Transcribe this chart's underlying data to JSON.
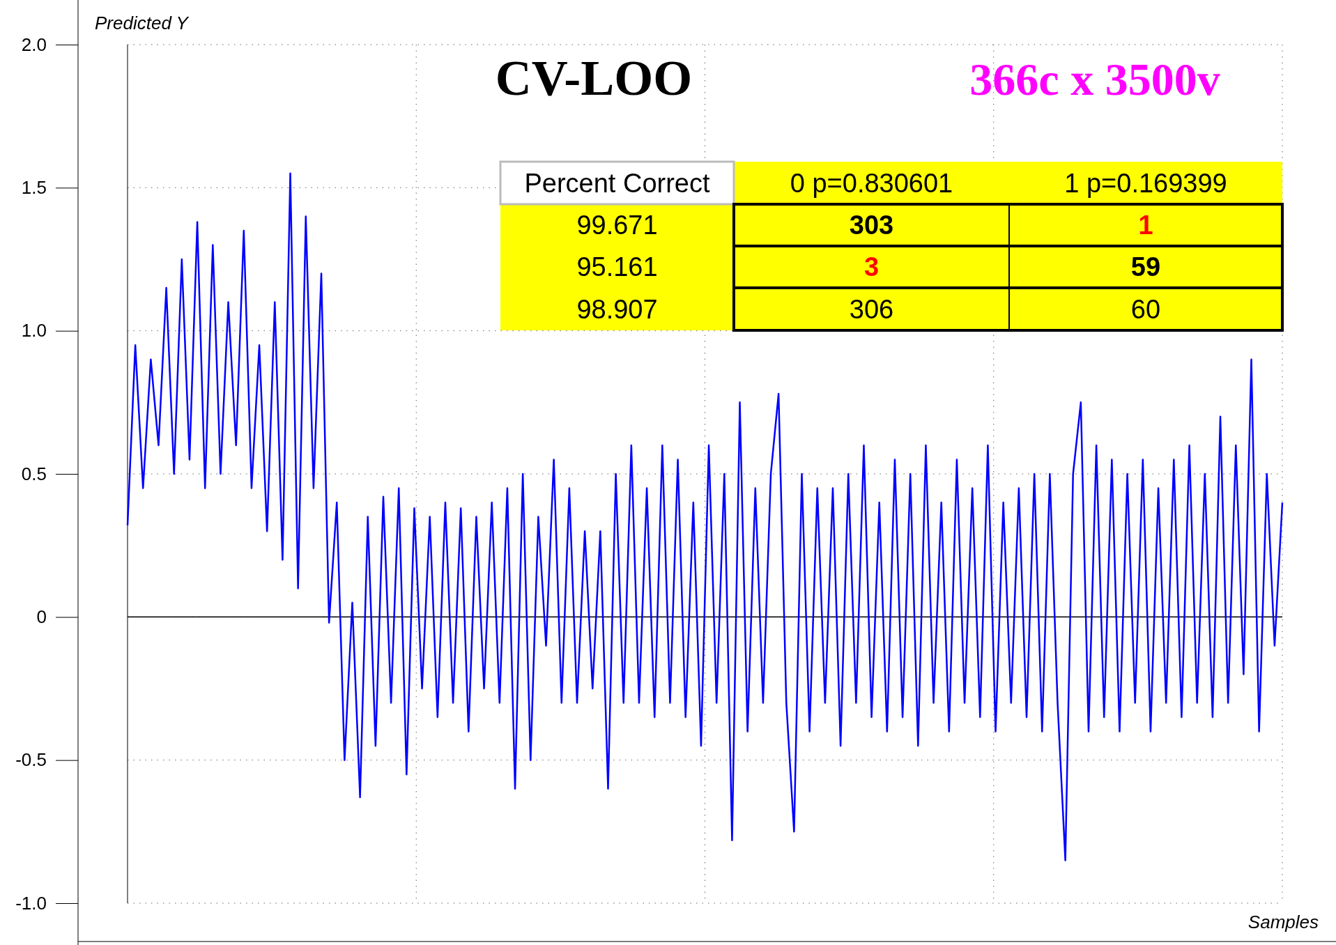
{
  "chart_data": {
    "type": "line",
    "title": "CV-LOO",
    "subtitle": "366c x 3500v",
    "ylabel": "Predicted Y",
    "xlabel": "Samples",
    "categories": [
      null,
      null,
      null,
      null,
      null,
      null,
      null,
      null,
      null,
      null,
      null,
      null,
      null,
      null,
      null,
      null,
      null,
      null,
      null,
      null,
      null,
      null,
      null,
      null,
      null,
      null,
      null,
      null,
      null,
      null,
      null,
      null,
      null,
      null,
      null,
      null,
      null,
      null,
      null,
      null,
      null,
      null,
      null,
      null,
      null,
      null,
      null,
      null,
      null,
      null,
      null,
      null,
      null,
      null,
      null,
      null,
      null,
      null,
      null,
      null,
      null,
      null,
      null,
      null,
      null,
      null,
      null,
      null,
      null,
      null,
      null,
      null,
      null,
      null,
      null,
      null,
      null,
      null,
      null,
      null,
      null,
      null,
      null,
      null,
      null,
      null,
      null,
      null,
      null,
      null,
      null,
      null,
      null,
      null,
      null,
      null,
      null,
      null,
      null,
      null,
      null,
      null,
      null,
      null,
      null,
      null,
      null,
      null,
      null,
      null,
      null,
      null,
      null,
      null,
      null,
      null,
      null,
      null,
      null,
      null,
      null,
      null,
      null,
      null,
      null,
      null,
      null,
      null,
      null,
      null,
      null,
      null,
      null,
      null,
      null,
      null,
      null,
      null,
      null,
      null,
      null,
      null,
      null,
      null,
      null,
      null,
      null,
      null,
      null,
      null
    ],
    "series": [
      {
        "color": "#0000ff",
        "values": [
          0.32,
          0.95,
          0.45,
          0.9,
          0.6,
          1.15,
          0.5,
          1.25,
          0.55,
          1.38,
          0.45,
          1.3,
          0.5,
          1.1,
          0.6,
          1.35,
          0.45,
          0.95,
          0.3,
          1.1,
          0.2,
          1.55,
          0.1,
          1.4,
          0.45,
          1.2,
          -0.02,
          0.4,
          -0.5,
          0.05,
          -0.63,
          0.35,
          -0.45,
          0.42,
          -0.3,
          0.45,
          -0.55,
          0.38,
          -0.25,
          0.35,
          -0.35,
          0.4,
          -0.3,
          0.38,
          -0.4,
          0.35,
          -0.25,
          0.4,
          -0.3,
          0.45,
          -0.6,
          0.5,
          -0.5,
          0.35,
          -0.1,
          0.55,
          -0.3,
          0.45,
          -0.3,
          0.3,
          -0.25,
          0.3,
          -0.6,
          0.5,
          -0.3,
          0.6,
          -0.3,
          0.45,
          -0.35,
          0.6,
          -0.3,
          0.55,
          -0.35,
          0.4,
          -0.45,
          0.6,
          -0.3,
          0.5,
          -0.78,
          0.75,
          -0.4,
          0.45,
          -0.3,
          0.5,
          0.78,
          -0.3,
          -0.75,
          0.5,
          -0.4,
          0.45,
          -0.3,
          0.45,
          -0.45,
          0.5,
          -0.3,
          0.6,
          -0.35,
          0.4,
          -0.4,
          0.55,
          -0.35,
          0.5,
          -0.45,
          0.6,
          -0.3,
          0.4,
          -0.4,
          0.55,
          -0.3,
          0.45,
          -0.35,
          0.6,
          -0.4,
          0.4,
          -0.3,
          0.45,
          -0.35,
          0.5,
          -0.4,
          0.5,
          -0.3,
          -0.85,
          0.5,
          0.75,
          -0.4,
          0.6,
          -0.35,
          0.55,
          -0.4,
          0.5,
          -0.3,
          0.55,
          -0.4,
          0.45,
          -0.3,
          0.55,
          -0.35,
          0.6,
          -0.3,
          0.5,
          -0.35,
          0.7,
          -0.3,
          0.6,
          -0.2,
          0.9,
          -0.4,
          0.5,
          -0.1,
          0.4
        ]
      }
    ],
    "ylim": [
      -1,
      2
    ],
    "yticks": [
      {
        "value": -1,
        "label": "-1.0"
      },
      {
        "value": -0.5,
        "label": "-0.5"
      },
      0,
      {
        "value": 0.5,
        "label": "0.5"
      },
      {
        "value": 1,
        "label": "1.0"
      },
      {
        "value": 1.5,
        "label": "1.5"
      },
      {
        "value": 2,
        "label": "2.0"
      }
    ],
    "grid": true,
    "ref_lines": [
      {
        "axis": "y",
        "value": 0,
        "color": "#000000"
      }
    ],
    "annotations": [
      "Percent Correct",
      "0  p=0.830601",
      "1  p=0.169399",
      "99.671",
      "303",
      "1",
      "95.161",
      "3",
      "59",
      "98.907",
      "306",
      "60"
    ]
  }
}
